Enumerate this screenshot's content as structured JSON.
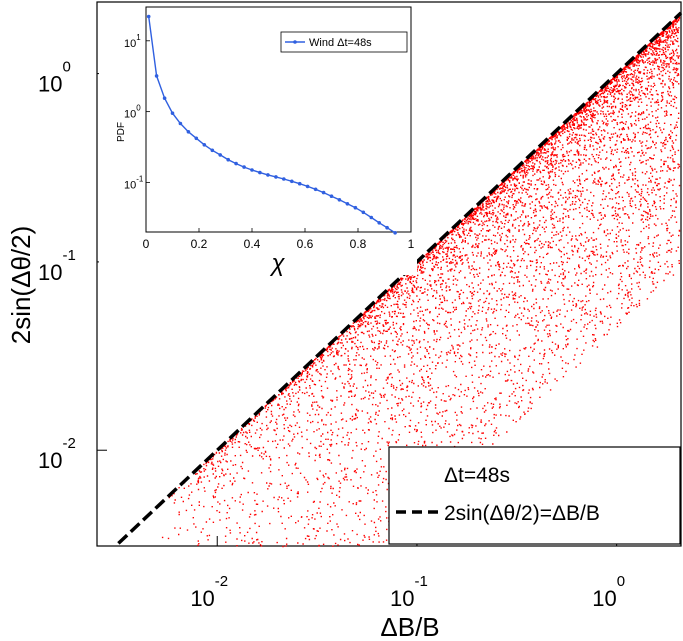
{
  "chart_data": [
    {
      "type": "scatter",
      "title": "",
      "xlabel": "ΔB/B",
      "ylabel": "2sin(Δθ/2)",
      "xscale": "log",
      "yscale": "log",
      "xlim": [
        0.0025,
        2.1
      ],
      "ylim": [
        0.0031,
        2.4
      ],
      "xticks": [
        {
          "value": 0.01,
          "base": "10",
          "exp": "-2"
        },
        {
          "value": 0.1,
          "base": "10",
          "exp": "-1"
        },
        {
          "value": 1,
          "base": "10",
          "exp": "0"
        }
      ],
      "yticks": [
        {
          "value": 0.01,
          "base": "10",
          "exp": "-2"
        },
        {
          "value": 0.1,
          "base": "10",
          "exp": "-1"
        },
        {
          "value": 1,
          "base": "10",
          "exp": "0"
        }
      ],
      "series": [
        {
          "name": "Δt=48s",
          "kind": "scatter",
          "color": "#ff0000",
          "note": "dense cloud of points lying on or below the line y = x"
        },
        {
          "name": "2sin(Δθ/2)=ΔB/B",
          "kind": "line",
          "style": "dashed",
          "color": "#000000",
          "x": [
            0.0032,
            2.1
          ],
          "y": [
            0.0032,
            2.1
          ]
        }
      ],
      "legend_position": "bottom-right",
      "grid": false
    },
    {
      "type": "line",
      "title": "",
      "xlabel": "χ",
      "ylabel": "PDF",
      "yscale": "log",
      "xlim": [
        0,
        1
      ],
      "ylim": [
        0.02,
        30
      ],
      "xticks": [
        "0",
        "0.2",
        "0.4",
        "0.6",
        "0.8",
        "1"
      ],
      "yticks": [
        {
          "value": 0.1,
          "base": "10",
          "exp": "-1"
        },
        {
          "value": 1,
          "base": "10",
          "exp": "0"
        },
        {
          "value": 10,
          "base": "10",
          "exp": "1"
        }
      ],
      "legend_position": "top-right",
      "grid": false,
      "series": [
        {
          "name": "Wind Δt=48s",
          "color": "#3060e0",
          "marker": "dot",
          "x": [
            0.01,
            0.04,
            0.07,
            0.1,
            0.13,
            0.16,
            0.19,
            0.22,
            0.25,
            0.28,
            0.31,
            0.34,
            0.37,
            0.4,
            0.43,
            0.46,
            0.49,
            0.52,
            0.55,
            0.58,
            0.61,
            0.64,
            0.67,
            0.7,
            0.73,
            0.76,
            0.79,
            0.82,
            0.85,
            0.88,
            0.91,
            0.94
          ],
          "y": [
            22,
            3.2,
            1.55,
            0.95,
            0.68,
            0.52,
            0.42,
            0.34,
            0.285,
            0.245,
            0.21,
            0.185,
            0.165,
            0.15,
            0.138,
            0.128,
            0.12,
            0.112,
            0.104,
            0.096,
            0.088,
            0.08,
            0.072,
            0.064,
            0.057,
            0.05,
            0.044,
            0.038,
            0.032,
            0.027,
            0.023,
            0.0195
          ]
        }
      ]
    }
  ]
}
